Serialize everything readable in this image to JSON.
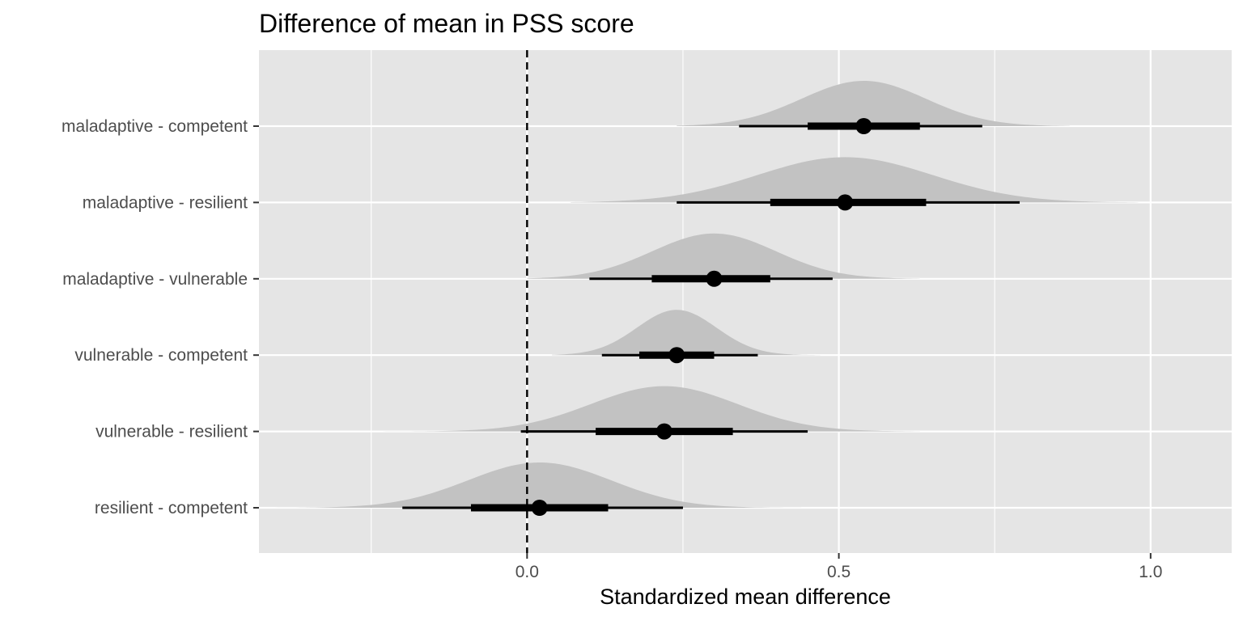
{
  "chart_data": {
    "type": "halfeye",
    "title": "Difference of mean in PSS score",
    "xlabel": "Standardized mean difference",
    "ylabel": "",
    "xlim": [
      -0.43,
      1.13
    ],
    "x_ticks": [
      0.0,
      0.5,
      1.0
    ],
    "x_tick_labels": [
      "0.0",
      "0.5",
      "1.0"
    ],
    "x_minor_ticks": [
      -0.25,
      0.25,
      0.75
    ],
    "reference_line": {
      "x": 0.0,
      "style": "dashed"
    },
    "grid": true,
    "legend": "none",
    "categories": [
      "maladaptive - competent",
      "maladaptive - resilient",
      "maladaptive - vulnerable",
      "vulnerable - competent",
      "vulnerable - resilient",
      "resilient - competent"
    ],
    "series": [
      {
        "category": "maladaptive - competent",
        "point": 0.54,
        "interval_66": [
          0.45,
          0.63
        ],
        "interval_95": [
          0.34,
          0.73
        ],
        "density_range": [
          0.24,
          0.87
        ]
      },
      {
        "category": "maladaptive - resilient",
        "point": 0.51,
        "interval_66": [
          0.39,
          0.64
        ],
        "interval_95": [
          0.24,
          0.79
        ],
        "density_range": [
          0.07,
          0.98
        ]
      },
      {
        "category": "maladaptive - vulnerable",
        "point": 0.3,
        "interval_66": [
          0.2,
          0.39
        ],
        "interval_95": [
          0.1,
          0.49
        ],
        "density_range": [
          0.0,
          0.63
        ]
      },
      {
        "category": "vulnerable - competent",
        "point": 0.24,
        "interval_66": [
          0.18,
          0.3
        ],
        "interval_95": [
          0.12,
          0.37
        ],
        "density_range": [
          0.04,
          0.47
        ]
      },
      {
        "category": "vulnerable - resilient",
        "point": 0.22,
        "interval_66": [
          0.11,
          0.33
        ],
        "interval_95": [
          -0.01,
          0.45
        ],
        "density_range": [
          -0.27,
          0.63
        ]
      },
      {
        "category": "resilient - competent",
        "point": 0.02,
        "interval_66": [
          -0.09,
          0.13
        ],
        "interval_95": [
          -0.2,
          0.25
        ],
        "density_range": [
          -0.42,
          0.44
        ]
      }
    ],
    "colors": {
      "panel_background": "#e5e5e5",
      "grid_line": "#ffffff",
      "density_fill": "#c2c2c2",
      "interval": "#000000",
      "point": "#000000",
      "reference_line": "#000000"
    }
  }
}
